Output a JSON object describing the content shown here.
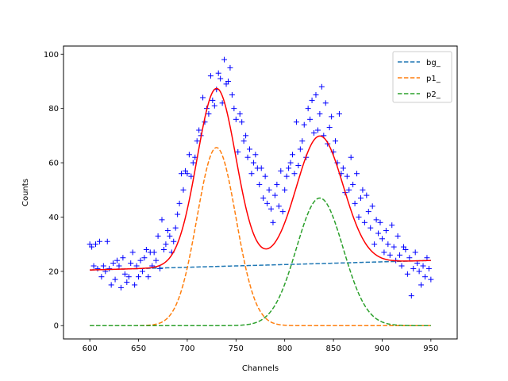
{
  "chart_data": {
    "type": "scatter",
    "xlabel": "Channels",
    "ylabel": "Counts",
    "xlim": [
      573,
      977
    ],
    "ylim": [
      -4.9,
      103
    ],
    "xticks": [
      600,
      650,
      700,
      750,
      800,
      850,
      900,
      950
    ],
    "yticks": [
      0,
      20,
      40,
      60,
      80,
      100
    ],
    "grid": false,
    "legend_placement": "top-right",
    "colors": {
      "data_points": "#0000ff",
      "fit": "#ff0000",
      "bg": "#1f77b4",
      "p1": "#ff7f0e",
      "p2": "#2ca02c"
    },
    "fit_model": {
      "background": {
        "slope": 0.01,
        "intercept": 14.5
      },
      "peak1": {
        "amplitude": 65.6,
        "center": 730,
        "sigma": 20
      },
      "peak2": {
        "amplitude": 47,
        "center": 836,
        "sigma": 24
      }
    },
    "curve_x_range": [
      600,
      950
    ],
    "series": [
      {
        "name": "bg_",
        "style": "dashed",
        "component": "background"
      },
      {
        "name": "p1_",
        "style": "dashed",
        "component": "peak1"
      },
      {
        "name": "p2_",
        "style": "dashed",
        "component": "peak2"
      },
      {
        "name": "",
        "style": "solid",
        "component": "total"
      }
    ],
    "data_points": {
      "marker": "+",
      "x": [
        600,
        602,
        604,
        606,
        608,
        610,
        612,
        614,
        616,
        618,
        620,
        622,
        624,
        626,
        628,
        630,
        632,
        634,
        636,
        638,
        640,
        642,
        644,
        646,
        648,
        650,
        652,
        654,
        656,
        658,
        660,
        662,
        664,
        666,
        668,
        670,
        672,
        674,
        676,
        678,
        680,
        682,
        684,
        686,
        688,
        690,
        692,
        694,
        696,
        698,
        700,
        702,
        704,
        706,
        708,
        710,
        712,
        714,
        716,
        718,
        720,
        722,
        724,
        726,
        728,
        730,
        732,
        734,
        736,
        738,
        740,
        742,
        744,
        746,
        748,
        750,
        752,
        754,
        756,
        758,
        760,
        762,
        764,
        766,
        768,
        770,
        772,
        774,
        776,
        778,
        780,
        782,
        784,
        786,
        788,
        790,
        792,
        794,
        796,
        798,
        800,
        802,
        804,
        806,
        808,
        810,
        812,
        814,
        816,
        818,
        820,
        822,
        824,
        826,
        828,
        830,
        832,
        834,
        836,
        838,
        840,
        842,
        844,
        846,
        848,
        850,
        852,
        854,
        856,
        858,
        860,
        862,
        864,
        866,
        868,
        870,
        872,
        874,
        876,
        878,
        880,
        882,
        884,
        886,
        888,
        890,
        892,
        894,
        896,
        898,
        900,
        902,
        904,
        906,
        908,
        910,
        912,
        914,
        916,
        918,
        920,
        922,
        924,
        926,
        928,
        930,
        932,
        934,
        936,
        938,
        940,
        942,
        944,
        946,
        948,
        950
      ],
      "y": [
        30,
        29,
        22,
        30,
        21,
        31,
        18,
        22,
        20,
        31,
        21,
        15,
        23,
        17,
        24,
        22,
        14,
        25,
        19,
        16,
        18,
        23,
        27,
        15,
        22,
        18,
        24,
        20,
        25,
        28,
        18,
        27,
        22,
        27,
        24,
        33,
        21,
        39,
        28,
        30,
        35,
        33,
        27,
        31,
        36,
        41,
        45,
        56,
        50,
        57,
        56,
        63,
        55,
        60,
        62,
        68,
        72,
        70,
        84,
        75,
        80,
        78,
        92,
        83,
        81,
        87,
        93,
        91,
        82,
        98,
        89,
        90,
        95,
        85,
        80,
        76,
        64,
        78,
        75,
        68,
        70,
        62,
        65,
        56,
        60,
        63,
        58,
        52,
        58,
        47,
        55,
        45,
        50,
        43,
        38,
        48,
        52,
        44,
        57,
        42,
        50,
        55,
        58,
        60,
        63,
        56,
        75,
        59,
        65,
        68,
        74,
        62,
        80,
        76,
        83,
        71,
        85,
        72,
        78,
        88,
        70,
        82,
        67,
        73,
        77,
        64,
        68,
        60,
        78,
        56,
        58,
        49,
        55,
        50,
        62,
        52,
        45,
        56,
        40,
        47,
        50,
        38,
        48,
        42,
        36,
        44,
        30,
        39,
        34,
        38,
        32,
        27,
        35,
        30,
        26,
        37,
        29,
        24,
        33,
        26,
        22,
        29,
        28,
        19,
        25,
        11,
        21,
        27,
        23,
        20,
        15,
        22,
        18,
        25,
        21,
        17
      ]
    }
  }
}
